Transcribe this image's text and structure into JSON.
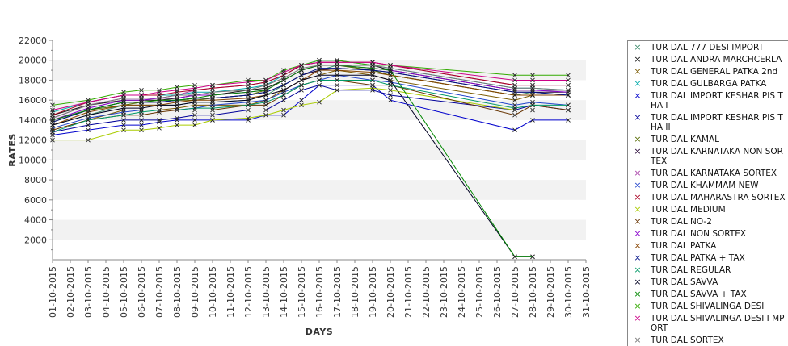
{
  "chart_data": {
    "type": "line",
    "title": "",
    "xlabel": "DAYS",
    "ylabel": "RATES",
    "ylim": [
      0,
      22000
    ],
    "yticks": [
      2000,
      4000,
      6000,
      8000,
      10000,
      12000,
      14000,
      16000,
      18000,
      20000,
      22000
    ],
    "grid_bands": true,
    "legend_position": "right",
    "x": [
      "01-10-2015",
      "02-10-2015",
      "03-10-2015",
      "04-10-2015",
      "05-10-2015",
      "06-10-2015",
      "07-10-2015",
      "08-10-2015",
      "09-10-2015",
      "10-10-2015",
      "11-10-2015",
      "12-10-2015",
      "13-10-2015",
      "14-10-2015",
      "15-10-2015",
      "16-10-2015",
      "17-10-2015",
      "18-10-2015",
      "19-10-2015",
      "20-10-2015",
      "21-10-2015",
      "22-10-2015",
      "23-10-2015",
      "24-10-2015",
      "25-10-2015",
      "26-10-2015",
      "27-10-2015",
      "28-10-2015",
      "29-10-2015",
      "30-10-2015",
      "31-10-2015"
    ],
    "series": [
      {
        "name": "TUR DAL  777 DESI IMPORT",
        "color": "#3a8a6a",
        "values": [
          13500,
          null,
          14500,
          null,
          15500,
          15500,
          15500,
          15500,
          15800,
          15800,
          null,
          16000,
          16500,
          17500,
          18500,
          19000,
          19500,
          null,
          19000,
          18500,
          null,
          null,
          null,
          null,
          null,
          null,
          16500,
          16800,
          null,
          16500,
          null
        ]
      },
      {
        "name": "TUR DAL ANDRA MARCHCERLA",
        "color": "#111111",
        "values": [
          14500,
          null,
          15500,
          null,
          16000,
          16000,
          16000,
          16200,
          16500,
          16500,
          null,
          17000,
          17200,
          18000,
          19000,
          19500,
          19500,
          null,
          19500,
          19000,
          null,
          null,
          null,
          null,
          null,
          null,
          17000,
          17000,
          null,
          17000,
          null
        ]
      },
      {
        "name": "TUR DAL GENERAL PATKA 2nd",
        "color": "#7a5a00",
        "values": [
          13000,
          null,
          14000,
          null,
          15000,
          15000,
          15000,
          15200,
          15500,
          15500,
          null,
          15500,
          16000,
          17000,
          18000,
          18500,
          19000,
          null,
          18500,
          18000,
          null,
          null,
          null,
          null,
          null,
          null,
          16000,
          16500,
          null,
          16500,
          null
        ]
      },
      {
        "name": "TUR DAL GULBARGA PATKA",
        "color": "#00aaaa",
        "values": [
          14800,
          null,
          15800,
          null,
          16500,
          16500,
          16500,
          16500,
          16800,
          16800,
          null,
          17200,
          17500,
          18500,
          19500,
          20000,
          20000,
          null,
          19500,
          19200,
          null,
          null,
          null,
          null,
          null,
          null,
          17200,
          17200,
          null,
          17000,
          null
        ]
      },
      {
        "name": "TUR DAL IMPORT KESHAR PIS THA I",
        "color": "#0000cc",
        "values": [
          12500,
          null,
          13000,
          null,
          13500,
          13500,
          13800,
          14000,
          14000,
          14000,
          null,
          14000,
          14500,
          14500,
          16000,
          17500,
          17500,
          null,
          17500,
          16000,
          null,
          null,
          null,
          null,
          null,
          null,
          13000,
          14000,
          null,
          14000,
          null
        ]
      },
      {
        "name": "TUR DAL IMPORT KESHAR PIS THA II",
        "color": "#000099",
        "values": [
          12800,
          null,
          13500,
          null,
          14000,
          14000,
          14000,
          14200,
          14500,
          14500,
          null,
          15000,
          15000,
          16000,
          17000,
          17500,
          17000,
          null,
          17000,
          16500,
          null,
          null,
          null,
          null,
          null,
          null,
          15000,
          15500,
          null,
          15000,
          null
        ]
      },
      {
        "name": "TUR DAL KAMAL",
        "color": "#556b00",
        "values": [
          13800,
          null,
          15000,
          null,
          15500,
          15800,
          16000,
          16000,
          16000,
          16200,
          null,
          16500,
          17000,
          18000,
          19000,
          19500,
          19500,
          null,
          19000,
          18500,
          null,
          null,
          null,
          null,
          null,
          null,
          16500,
          16500,
          null,
          16500,
          null
        ]
      },
      {
        "name": "TUR DAL KARNATAKA NON SOR TEX",
        "color": "#220033",
        "values": [
          14000,
          null,
          15000,
          null,
          15800,
          15800,
          15800,
          16000,
          16200,
          16200,
          null,
          16500,
          16800,
          17500,
          18500,
          19000,
          19200,
          null,
          19000,
          18800,
          null,
          null,
          null,
          null,
          null,
          null,
          16800,
          16800,
          null,
          16800,
          null
        ]
      },
      {
        "name": "TUR DAL KARNATAKA SORTEX",
        "color": "#aa44aa",
        "values": [
          14200,
          null,
          15500,
          null,
          16200,
          16200,
          16200,
          16500,
          17000,
          17200,
          null,
          17500,
          17800,
          18500,
          19500,
          19800,
          19800,
          null,
          19800,
          19500,
          null,
          null,
          null,
          null,
          null,
          null,
          17500,
          17500,
          null,
          17500,
          null
        ]
      },
      {
        "name": "TUR DAL KHAMMAM NEW",
        "color": "#2244cc",
        "values": [
          13200,
          null,
          14200,
          null,
          14800,
          15000,
          15000,
          15000,
          15200,
          15500,
          null,
          15800,
          16000,
          16800,
          17500,
          18000,
          18500,
          null,
          18000,
          17800,
          null,
          null,
          null,
          null,
          null,
          null,
          15500,
          15800,
          null,
          15500,
          null
        ]
      },
      {
        "name": "TUR DAL MAHARASTRA SORTEX",
        "color": "#aa0022",
        "values": [
          14500,
          null,
          15800,
          null,
          16500,
          16500,
          16500,
          16800,
          17000,
          17200,
          null,
          17500,
          17800,
          18500,
          19500,
          19800,
          19800,
          null,
          19800,
          19500,
          null,
          null,
          null,
          null,
          null,
          null,
          17500,
          17500,
          null,
          17500,
          null
        ]
      },
      {
        "name": "TUR DAL MEDIUM",
        "color": "#aacc00",
        "values": [
          12000,
          null,
          12000,
          null,
          13000,
          13000,
          13200,
          13500,
          13500,
          14000,
          null,
          14200,
          14500,
          15000,
          15500,
          15800,
          17000,
          null,
          17200,
          17000,
          null,
          null,
          null,
          null,
          null,
          null,
          15000,
          15000,
          null,
          15000,
          null
        ]
      },
      {
        "name": "TUR DAL NO-2",
        "color": "#663300",
        "values": [
          13000,
          null,
          14000,
          null,
          14500,
          14500,
          14800,
          15000,
          15000,
          15000,
          null,
          15500,
          15500,
          16500,
          17500,
          18000,
          18000,
          null,
          17500,
          17500,
          null,
          null,
          null,
          null,
          null,
          null,
          14500,
          15500,
          null,
          15000,
          null
        ]
      },
      {
        "name": "TUR DAL NON SORTEX",
        "color": "#8800cc",
        "values": [
          14000,
          null,
          15200,
          null,
          16000,
          16000,
          16200,
          16200,
          16500,
          16500,
          null,
          16800,
          17000,
          18000,
          19000,
          19500,
          19500,
          null,
          19200,
          19000,
          null,
          null,
          null,
          null,
          null,
          null,
          17000,
          17000,
          null,
          16800,
          null
        ]
      },
      {
        "name": "TUR DAL PATKA",
        "color": "#884400",
        "values": [
          13500,
          null,
          14800,
          null,
          15500,
          15500,
          15500,
          15800,
          16000,
          16000,
          null,
          16200,
          16500,
          17000,
          18000,
          19000,
          19000,
          null,
          18800,
          18500,
          null,
          null,
          null,
          null,
          null,
          null,
          16500,
          16500,
          null,
          16500,
          null
        ]
      },
      {
        "name": "TUR DAL PATKA + TAX",
        "color": "#001188",
        "values": [
          13800,
          null,
          15000,
          null,
          15800,
          15800,
          15800,
          16000,
          16200,
          16200,
          null,
          16500,
          16800,
          17500,
          18500,
          19200,
          19200,
          null,
          19000,
          18800,
          null,
          null,
          null,
          null,
          null,
          null,
          16800,
          16800,
          null,
          16500,
          null
        ]
      },
      {
        "name": "TUR DAL REGULAR",
        "color": "#009966",
        "values": [
          12800,
          null,
          14000,
          null,
          14500,
          14800,
          15000,
          15000,
          15200,
          15200,
          null,
          15500,
          15800,
          16500,
          17500,
          18000,
          18000,
          null,
          18000,
          17500,
          null,
          null,
          null,
          null,
          null,
          null,
          15200,
          15500,
          null,
          15500,
          null
        ]
      },
      {
        "name": "TUR DAL SAVVA",
        "color": "#000022",
        "values": [
          13500,
          null,
          14500,
          null,
          15200,
          15200,
          15500,
          15500,
          15800,
          15800,
          null,
          16000,
          16500,
          17000,
          18000,
          18500,
          18500,
          null,
          18500,
          18000,
          null,
          null,
          null,
          null,
          null,
          null,
          300,
          300,
          null,
          null,
          null
        ]
      },
      {
        "name": "TUR DAL SAVVA + TAX",
        "color": "#008800",
        "values": [
          14000,
          null,
          15000,
          null,
          15800,
          15800,
          16000,
          16000,
          16200,
          16500,
          null,
          16800,
          17000,
          18000,
          19000,
          19500,
          19500,
          null,
          19200,
          19000,
          null,
          null,
          null,
          null,
          null,
          null,
          300,
          300,
          null,
          null,
          null
        ]
      },
      {
        "name": "TUR DAL SHIVALINGA DESI",
        "color": "#33aa00",
        "values": [
          15500,
          null,
          16000,
          null,
          16800,
          17000,
          17000,
          17300,
          17500,
          17500,
          null,
          18000,
          18000,
          19000,
          19500,
          20000,
          20000,
          null,
          19500,
          19500,
          null,
          null,
          null,
          null,
          null,
          null,
          18500,
          18500,
          null,
          18500,
          null
        ]
      },
      {
        "name": "TUR DAL SHIVALINGA DESI I MPORT",
        "color": "#cc0088",
        "values": [
          15000,
          null,
          15800,
          null,
          16500,
          16500,
          16800,
          17000,
          17200,
          17500,
          null,
          17800,
          18000,
          18800,
          19500,
          19800,
          19800,
          null,
          19800,
          19500,
          null,
          null,
          null,
          null,
          null,
          null,
          18000,
          18000,
          null,
          18000,
          null
        ]
      },
      {
        "name": "TUR DAL SORTEX",
        "color": "#777777",
        "values": [
          14200,
          null,
          15500,
          null,
          16200,
          16200,
          16200,
          16500,
          16500,
          16800,
          null,
          17000,
          17500,
          18200,
          19200,
          19500,
          19500,
          null,
          19500,
          19200,
          null,
          null,
          null,
          null,
          null,
          null,
          17200,
          17200,
          null,
          17000,
          null
        ]
      }
    ]
  }
}
